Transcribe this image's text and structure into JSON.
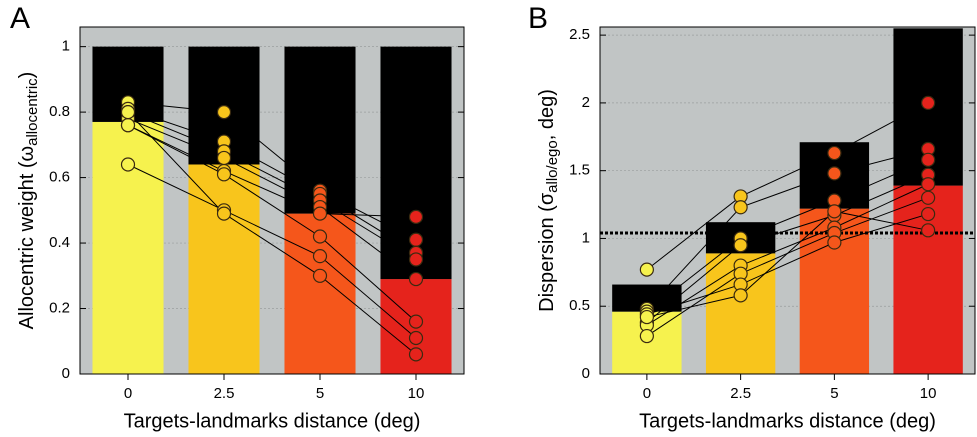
{
  "chart_data": [
    {
      "type": "bar",
      "panel": "A",
      "ylabel_main": "Allocentric weight (ω",
      "ylabel_sub": "allocentric",
      "ylabel_end": ")",
      "xlabel": "Targets-landmarks distance (deg)",
      "categories": [
        "0",
        "2.5",
        "5",
        "10"
      ],
      "series": [
        {
          "colors": [
            "#f6f24e",
            "#f8c51c",
            "#f5561b",
            "#e5231c"
          ],
          "values": [
            0.77,
            0.64,
            0.49,
            0.29
          ]
        },
        {
          "color": "#000000",
          "values": [
            0.23,
            0.36,
            0.51,
            0.71
          ]
        }
      ],
      "subjects": [
        {
          "values": [
            0.83,
            0.8,
            0.56,
            0.41
          ]
        },
        {
          "values": [
            0.81,
            0.71,
            0.55,
            0.37
          ]
        },
        {
          "values": [
            0.8,
            0.68,
            0.53,
            0.35
          ]
        },
        {
          "values": [
            0.78,
            0.66,
            0.51,
            0.29
          ]
        },
        {
          "values": [
            0.76,
            0.62,
            0.49,
            0.48
          ]
        },
        {
          "values": [
            0.76,
            0.61,
            0.42,
            0.16
          ]
        },
        {
          "values": [
            0.64,
            0.5,
            0.36,
            0.11
          ]
        },
        {
          "values": [
            0.8,
            0.49,
            0.3,
            0.06
          ]
        }
      ],
      "ylim": [
        0,
        1.06
      ],
      "yticks": [
        0,
        0.2,
        0.4,
        0.6,
        0.8,
        1
      ],
      "grid": true,
      "background": "#c1c5c5"
    },
    {
      "type": "bar",
      "panel": "B",
      "ylabel_main": "Dispersion (σ",
      "ylabel_sub": "allo/ego",
      "ylabel_end": ", deg)",
      "xlabel": "Targets-landmarks distance (deg)",
      "categories": [
        "0",
        "2.5",
        "5",
        "10"
      ],
      "series": [
        {
          "colors": [
            "#f6f24e",
            "#f8c51c",
            "#f5561b",
            "#e5231c"
          ],
          "values": [
            0.46,
            0.89,
            1.22,
            1.39
          ]
        },
        {
          "color": "#000000",
          "values": [
            0.2,
            0.23,
            0.49,
            1.16
          ]
        }
      ],
      "subjects": [
        {
          "values": [
            0.77,
            1.31,
            1.63,
            2.0
          ]
        },
        {
          "values": [
            0.48,
            1.23,
            1.48,
            1.66
          ]
        },
        {
          "values": [
            0.46,
            1.0,
            1.28,
            1.58
          ]
        },
        {
          "values": [
            0.38,
            0.95,
            1.17,
            1.47
          ]
        },
        {
          "values": [
            0.36,
            0.8,
            1.08,
            1.4
          ]
        },
        {
          "values": [
            0.28,
            0.74,
            1.04,
            1.3
          ]
        },
        {
          "values": [
            0.44,
            0.66,
            0.97,
            1.18
          ]
        },
        {
          "values": [
            0.42,
            0.58,
            1.2,
            1.06
          ]
        }
      ],
      "hline": 1.04,
      "ylim": [
        0,
        2.56
      ],
      "yticks": [
        0,
        0.5,
        1,
        1.5,
        2,
        2.5
      ],
      "grid": true,
      "background": "#c1c5c5"
    }
  ]
}
